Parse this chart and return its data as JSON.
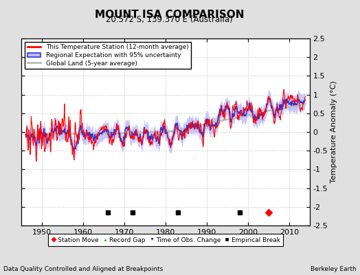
{
  "title": "MOUNT ISA COMPARISON",
  "subtitle": "20.572 S, 139.370 E (Australia)",
  "ylabel": "Temperature Anomaly (°C)",
  "footer_left": "Data Quality Controlled and Aligned at Breakpoints",
  "footer_right": "Berkeley Earth",
  "xlim": [
    1945,
    2015
  ],
  "ylim": [
    -2.5,
    2.5
  ],
  "yticks": [
    -2.5,
    -2,
    -1.5,
    -1,
    -0.5,
    0,
    0.5,
    1,
    1.5,
    2,
    2.5
  ],
  "xticks": [
    1950,
    1960,
    1970,
    1980,
    1990,
    2000,
    2010
  ],
  "station_color": "#FF0000",
  "regional_color": "#3333CC",
  "regional_fill_color": "#BBBBFF",
  "global_color": "#BBBBBB",
  "bg_color": "#E0E0E0",
  "plot_bg_color": "#FFFFFF",
  "grid_color": "#CCCCCC",
  "empirical_breaks": [
    1966,
    1972,
    1983,
    1998
  ],
  "station_move": [
    2005
  ],
  "record_gap": [],
  "obs_change": [],
  "marker_y": -2.15,
  "seed": 7,
  "start_year": 1946,
  "end_year": 2013
}
